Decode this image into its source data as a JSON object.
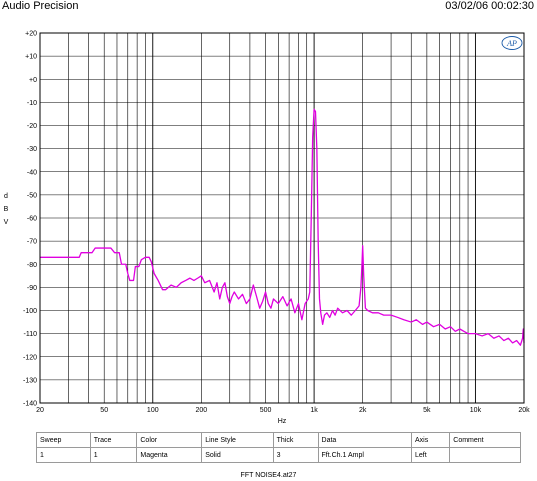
{
  "header": {
    "app_title": "Audio Precision",
    "timestamp": "03/02/06 00:02:30"
  },
  "logo_text": "AP",
  "chart_data": {
    "type": "line",
    "xscale": "log",
    "xlim": [
      20,
      20000
    ],
    "ylim": [
      -140,
      20
    ],
    "grid": true,
    "xlabel": "Hz",
    "ylabel_chars": [
      "d",
      "B",
      "V"
    ],
    "y_ticks": [
      {
        "v": 20,
        "t": "+20"
      },
      {
        "v": 10,
        "t": "+10"
      },
      {
        "v": 0,
        "t": "+0"
      },
      {
        "v": -10,
        "t": "-10"
      },
      {
        "v": -20,
        "t": "-20"
      },
      {
        "v": -30,
        "t": "-30"
      },
      {
        "v": -40,
        "t": "-40"
      },
      {
        "v": -50,
        "t": "-50"
      },
      {
        "v": -60,
        "t": "-60"
      },
      {
        "v": -70,
        "t": "-70"
      },
      {
        "v": -80,
        "t": "-80"
      },
      {
        "v": -90,
        "t": "-90"
      },
      {
        "v": -100,
        "t": "-100"
      },
      {
        "v": -110,
        "t": "-110"
      },
      {
        "v": -120,
        "t": "-120"
      },
      {
        "v": -130,
        "t": "-130"
      },
      {
        "v": -140,
        "t": "-140"
      }
    ],
    "x_ticks": [
      {
        "v": 20,
        "t": "20"
      },
      {
        "v": 50,
        "t": "50"
      },
      {
        "v": 100,
        "t": "100"
      },
      {
        "v": 200,
        "t": "200"
      },
      {
        "v": 500,
        "t": "500"
      },
      {
        "v": 1000,
        "t": "1k"
      },
      {
        "v": 2000,
        "t": "2k"
      },
      {
        "v": 5000,
        "t": "5k"
      },
      {
        "v": 10000,
        "t": "10k"
      },
      {
        "v": 20000,
        "t": "20k"
      }
    ],
    "series": [
      {
        "color": "#e000e0",
        "points": [
          [
            20,
            -77
          ],
          [
            35,
            -77
          ],
          [
            36,
            -75
          ],
          [
            42,
            -75
          ],
          [
            44,
            -73
          ],
          [
            55,
            -73
          ],
          [
            58,
            -75
          ],
          [
            62,
            -75
          ],
          [
            64,
            -80
          ],
          [
            68,
            -80
          ],
          [
            70,
            -84
          ],
          [
            72,
            -87
          ],
          [
            76,
            -87
          ],
          [
            78,
            -81
          ],
          [
            82,
            -81
          ],
          [
            85,
            -78
          ],
          [
            90,
            -77
          ],
          [
            95,
            -77
          ],
          [
            98,
            -79
          ],
          [
            102,
            -84
          ],
          [
            108,
            -87
          ],
          [
            115,
            -91
          ],
          [
            120,
            -91
          ],
          [
            130,
            -89
          ],
          [
            140,
            -90
          ],
          [
            150,
            -88
          ],
          [
            160,
            -87
          ],
          [
            170,
            -86
          ],
          [
            180,
            -87
          ],
          [
            190,
            -86
          ],
          [
            200,
            -85
          ],
          [
            210,
            -88
          ],
          [
            225,
            -87
          ],
          [
            240,
            -92
          ],
          [
            250,
            -88
          ],
          [
            260,
            -95
          ],
          [
            270,
            -90
          ],
          [
            280,
            -88
          ],
          [
            290,
            -94
          ],
          [
            300,
            -97
          ],
          [
            310,
            -94
          ],
          [
            320,
            -92
          ],
          [
            340,
            -95
          ],
          [
            360,
            -93
          ],
          [
            380,
            -97
          ],
          [
            400,
            -95
          ],
          [
            420,
            -89
          ],
          [
            440,
            -94
          ],
          [
            460,
            -99
          ],
          [
            480,
            -96
          ],
          [
            500,
            -92
          ],
          [
            520,
            -97
          ],
          [
            540,
            -99
          ],
          [
            560,
            -95
          ],
          [
            600,
            -97
          ],
          [
            640,
            -94
          ],
          [
            680,
            -98
          ],
          [
            720,
            -95
          ],
          [
            760,
            -101
          ],
          [
            800,
            -97
          ],
          [
            840,
            -104
          ],
          [
            880,
            -97
          ],
          [
            920,
            -95
          ],
          [
            940,
            -92
          ],
          [
            960,
            -60
          ],
          [
            980,
            -25
          ],
          [
            1000,
            -13
          ],
          [
            1020,
            -14
          ],
          [
            1040,
            -30
          ],
          [
            1060,
            -70
          ],
          [
            1080,
            -95
          ],
          [
            1100,
            -101
          ],
          [
            1130,
            -106
          ],
          [
            1160,
            -102
          ],
          [
            1200,
            -101
          ],
          [
            1250,
            -103
          ],
          [
            1300,
            -100
          ],
          [
            1350,
            -102
          ],
          [
            1400,
            -99
          ],
          [
            1500,
            -101
          ],
          [
            1600,
            -100
          ],
          [
            1700,
            -102
          ],
          [
            1800,
            -100
          ],
          [
            1900,
            -98
          ],
          [
            1950,
            -90
          ],
          [
            1980,
            -80
          ],
          [
            2000,
            -72
          ],
          [
            2030,
            -85
          ],
          [
            2080,
            -99
          ],
          [
            2150,
            -100
          ],
          [
            2300,
            -101
          ],
          [
            2500,
            -101
          ],
          [
            2700,
            -102
          ],
          [
            3000,
            -102
          ],
          [
            3300,
            -103
          ],
          [
            3600,
            -104
          ],
          [
            4000,
            -105
          ],
          [
            4300,
            -104
          ],
          [
            4700,
            -106
          ],
          [
            5000,
            -105
          ],
          [
            5500,
            -107
          ],
          [
            6000,
            -106
          ],
          [
            6500,
            -108
          ],
          [
            7000,
            -107
          ],
          [
            7500,
            -109
          ],
          [
            8000,
            -108
          ],
          [
            9000,
            -110
          ],
          [
            10000,
            -110
          ],
          [
            11000,
            -111
          ],
          [
            12000,
            -110
          ],
          [
            13000,
            -112
          ],
          [
            14000,
            -111
          ],
          [
            15000,
            -113
          ],
          [
            16000,
            -112
          ],
          [
            17000,
            -114
          ],
          [
            18000,
            -113
          ],
          [
            19000,
            -115
          ],
          [
            19600,
            -112
          ],
          [
            19800,
            -108
          ],
          [
            20000,
            -114
          ]
        ]
      }
    ]
  },
  "legend": {
    "headers": [
      "Sweep",
      "Trace",
      "Color",
      "Line Style",
      "Thick",
      "Data",
      "Axis",
      "Comment"
    ],
    "rows": [
      [
        "1",
        "1",
        "Magenta",
        "Solid",
        "3",
        "Fft.Ch.1 Ampl",
        "Left",
        ""
      ]
    ]
  },
  "footer": "FFT NOISE4.at27"
}
